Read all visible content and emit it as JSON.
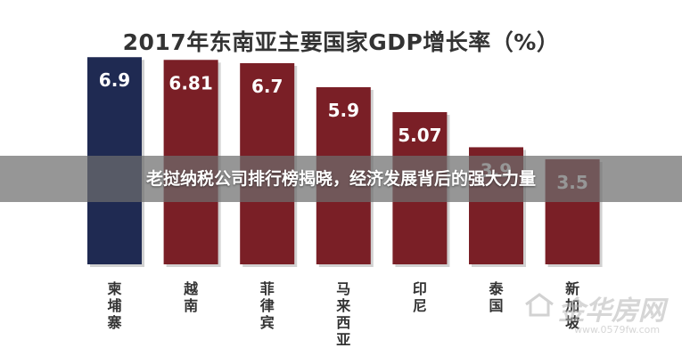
{
  "chart_data": {
    "type": "bar",
    "title": "2017年东南亚主要国家GDP增长率（%）",
    "categories": [
      "柬埔寨",
      "越南",
      "菲律宾",
      "马来西亚",
      "印尼",
      "泰国",
      "新加坡"
    ],
    "values": [
      6.9,
      6.81,
      6.7,
      5.9,
      5.07,
      3.9,
      3.5
    ],
    "data_labels": [
      "6.9",
      "6.81",
      "6.7",
      "5.9",
      "5.07",
      "3.9",
      "3.5"
    ],
    "ylim": [
      0,
      7.5
    ],
    "xlabel": "",
    "ylabel": "",
    "grid": false,
    "colors": {
      "highlight": "#1f2a52",
      "bar": "#7a1f26",
      "label": "#ffffff",
      "tick": "#333333"
    },
    "highlight_index": 0
  },
  "banner": {
    "text": "老挝纳税公司排行榜揭晓，经济发展背后的强大力量"
  },
  "watermark": {
    "name": "金华房网",
    "url": "www.0579fw.com"
  }
}
